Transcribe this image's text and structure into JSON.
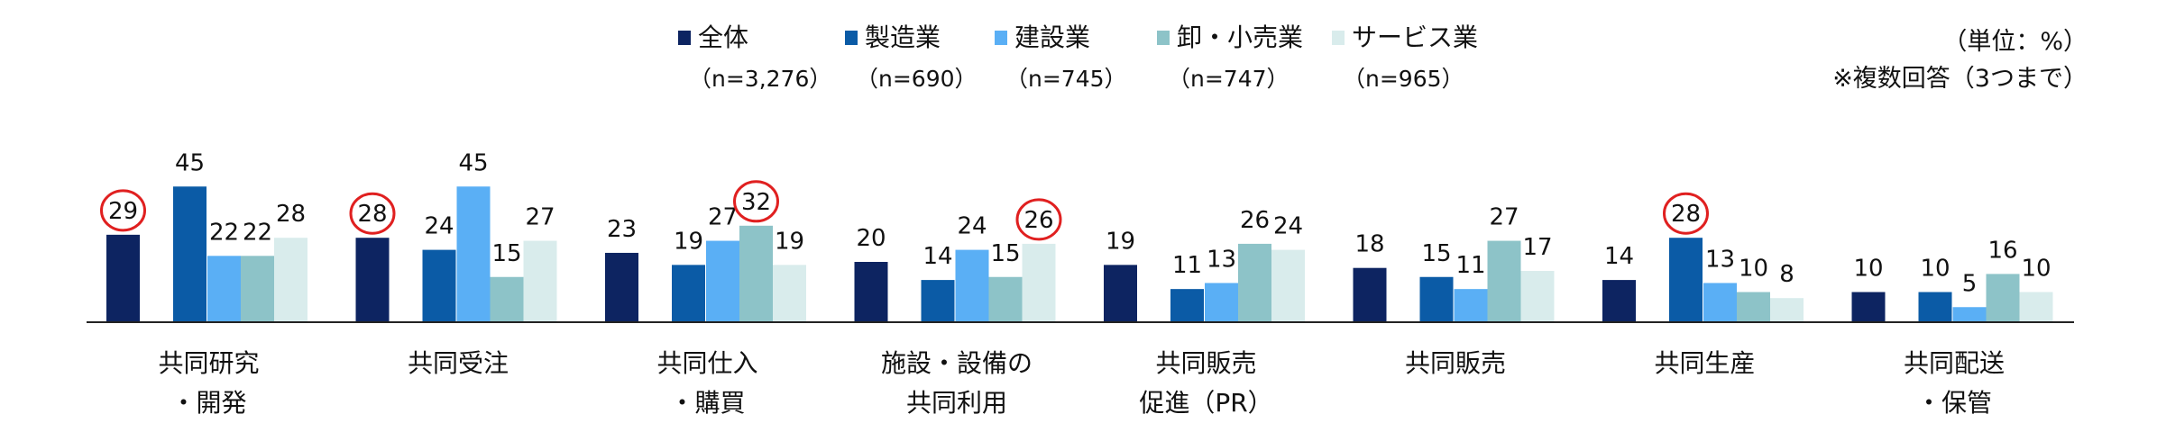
{
  "chart_data": {
    "type": "bar",
    "categories": [
      [
        "共同研究",
        "・開発"
      ],
      [
        "共同受注"
      ],
      [
        "共同仕入",
        "・購買"
      ],
      [
        "施設・設備の",
        "共同利用"
      ],
      [
        "共同販売",
        "促進（PR）"
      ],
      [
        "共同販売"
      ],
      [
        "共同生産"
      ],
      [
        "共同配送",
        "・保管"
      ]
    ],
    "series": [
      {
        "name": "全体",
        "n": "（n=3,276）",
        "color": "#0d2461",
        "values": [
          29,
          28,
          23,
          20,
          19,
          18,
          14,
          10
        ]
      },
      {
        "name": "製造業",
        "n": "（n=690）",
        "color": "#0b5ba6",
        "values": [
          45,
          24,
          19,
          14,
          11,
          15,
          28,
          10
        ]
      },
      {
        "name": "建設業",
        "n": "（n=745）",
        "color": "#5aaff5",
        "values": [
          22,
          45,
          27,
          24,
          13,
          11,
          13,
          5
        ]
      },
      {
        "name": "卸・小売業",
        "n": "（n=747）",
        "color": "#8dc3c8",
        "values": [
          22,
          15,
          32,
          15,
          26,
          27,
          10,
          16
        ]
      },
      {
        "name": "サービス業",
        "n": "（n=965）",
        "color": "#d9ecec",
        "values": [
          28,
          27,
          19,
          26,
          24,
          17,
          8,
          10
        ]
      }
    ],
    "highlighted": [
      {
        "category": 0,
        "series": 0
      },
      {
        "category": 1,
        "series": 0
      },
      {
        "category": 2,
        "series": 3
      },
      {
        "category": 3,
        "series": 4
      },
      {
        "category": 6,
        "series": 1
      }
    ],
    "highlight_color": "#e02020",
    "ylim": [
      0,
      50
    ],
    "grid": false,
    "legend_position": "top-center"
  },
  "notes": {
    "unit": "（単位：%）",
    "multiple": "※複数回答（3つまで）"
  }
}
